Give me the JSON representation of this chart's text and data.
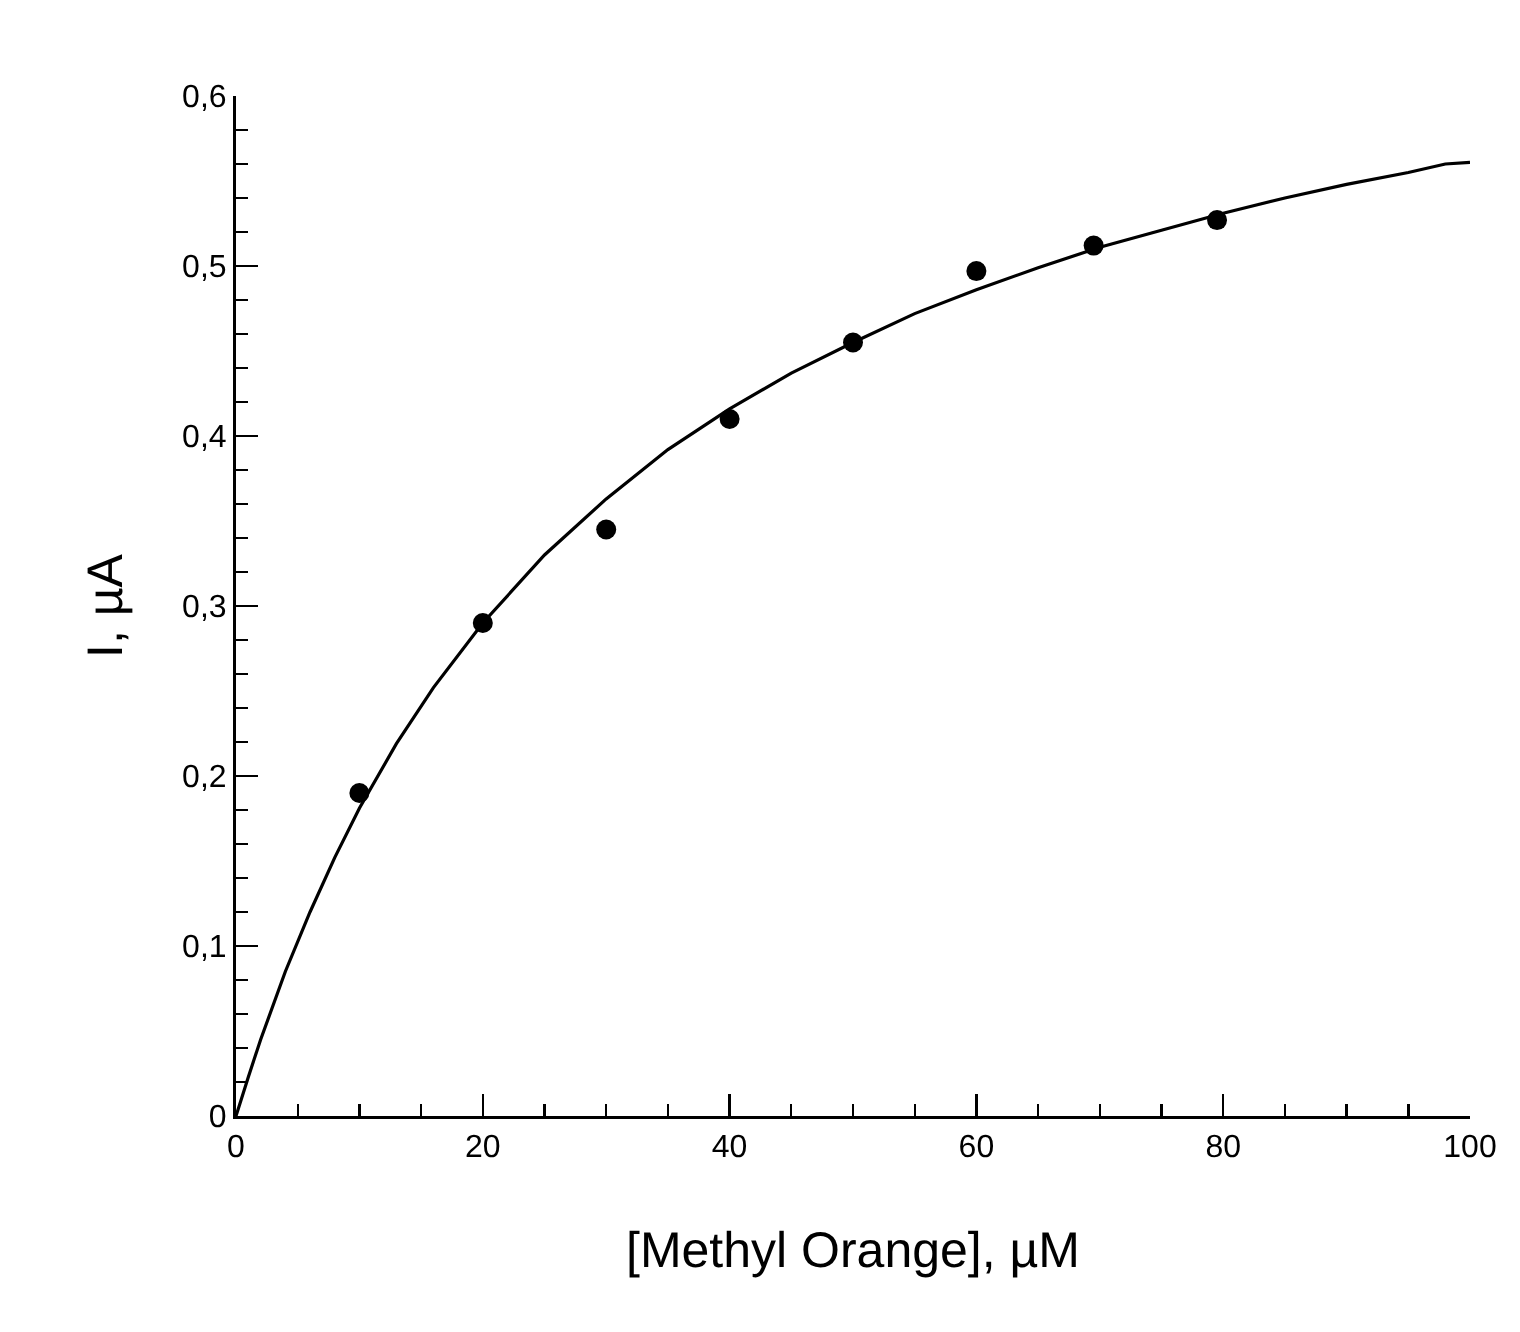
{
  "chart_data": {
    "type": "scatter",
    "xlabel": "[Methyl Orange], µM",
    "ylabel": "I, µA",
    "xlim": [
      0,
      100
    ],
    "xticks": [
      0,
      20,
      40,
      60,
      80,
      100
    ],
    "ylim": [
      0,
      0.6
    ],
    "yticks": [
      0,
      {
        "value": 0.1,
        "label": "0,1"
      },
      {
        "value": 0.2,
        "label": "0,2"
      },
      {
        "value": 0.3,
        "label": "0,3"
      },
      {
        "value": 0.4,
        "label": "0,4"
      },
      {
        "value": 0.5,
        "label": "0,5"
      },
      {
        "value": 0.6,
        "label": "0,6"
      }
    ],
    "grid": false,
    "legend": false,
    "series": [
      {
        "marker": "circle",
        "color": "#000000",
        "x": [
          10,
          20,
          30,
          40,
          50,
          60,
          69.5,
          79.5
        ],
        "values": [
          0.19,
          0.29,
          0.345,
          0.41,
          0.455,
          0.497,
          0.512,
          0.527
        ]
      },
      {
        "type": "line",
        "color": "#000000",
        "line_style": "solid",
        "x": [
          0,
          1,
          2,
          4,
          6,
          8,
          10,
          13,
          16,
          20,
          25,
          30,
          35,
          40,
          45,
          50,
          55,
          60,
          65,
          70,
          75,
          80,
          85,
          90,
          95,
          98,
          100
        ],
        "values": [
          0,
          0.023,
          0.045,
          0.085,
          0.12,
          0.152,
          0.181,
          0.219,
          0.252,
          0.29,
          0.33,
          0.363,
          0.392,
          0.416,
          0.437,
          0.455,
          0.472,
          0.486,
          0.499,
          0.511,
          0.521,
          0.531,
          0.54,
          0.548,
          0.555,
          0.56,
          0.561
        ]
      }
    ]
  }
}
